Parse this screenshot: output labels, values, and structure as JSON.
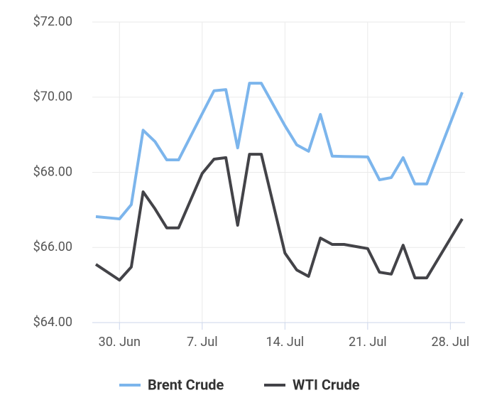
{
  "chart_data": {
    "type": "line",
    "x": [
      "28. Jun",
      "30. Jun",
      "1. Jul",
      "2. Jul",
      "3. Jul",
      "4. Jul",
      "5. Jul",
      "7. Jul",
      "8. Jul",
      "9. Jul",
      "10. Jul",
      "11. Jul",
      "12. Jul",
      "14. Jul",
      "15. Jul",
      "16. Jul",
      "17. Jul",
      "18. Jul",
      "19. Jul",
      "21. Jul",
      "22. Jul",
      "23. Jul",
      "24. Jul",
      "25. Jul",
      "26. Jul",
      "29. Jul"
    ],
    "series": [
      {
        "name": "Brent Crude",
        "color": "#7cb5ec",
        "values": [
          66.82,
          66.76,
          67.14,
          69.12,
          68.82,
          68.33,
          68.33,
          69.56,
          70.17,
          70.2,
          68.65,
          70.37,
          70.37,
          69.24,
          68.73,
          68.56,
          69.54,
          68.43,
          68.42,
          68.41,
          67.8,
          67.86,
          68.39,
          67.69,
          67.69,
          70.13
        ]
      },
      {
        "name": "WTI Crude",
        "color": "#434348",
        "values": [
          65.55,
          65.13,
          65.48,
          67.48,
          67.03,
          66.52,
          66.52,
          67.97,
          68.35,
          68.39,
          66.59,
          68.48,
          68.48,
          65.85,
          65.4,
          65.23,
          66.25,
          66.08,
          66.08,
          65.97,
          65.34,
          65.29,
          66.06,
          65.19,
          65.19,
          66.76
        ]
      }
    ],
    "xlim": [
      "28. Jun",
      "29. Jul"
    ],
    "xticks": [
      "30. Jun",
      "7. Jul",
      "14. Jul",
      "21. Jul",
      "28. Jul"
    ],
    "ylim": [
      64,
      72
    ],
    "yticks": [
      {
        "value": 64,
        "label": "$64.00"
      },
      {
        "value": 66,
        "label": "$66.00"
      },
      {
        "value": 68,
        "label": "$68.00"
      },
      {
        "value": 70,
        "label": "$70.00"
      },
      {
        "value": 72,
        "label": "$72.00"
      }
    ],
    "grid": true
  }
}
